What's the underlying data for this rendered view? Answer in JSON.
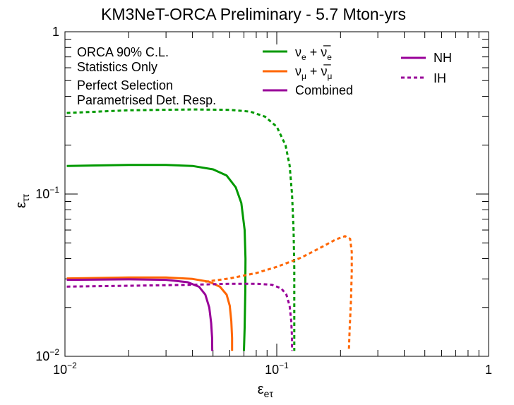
{
  "chart_data": {
    "type": "line",
    "title": "KM3NeT-ORCA Preliminary - 5.7 Mton-yrs",
    "xlabel": "εeτ",
    "ylabel": "εττ",
    "xscale": "log",
    "yscale": "log",
    "xlim": [
      0.01,
      1
    ],
    "ylim": [
      0.01,
      1
    ],
    "x_ticks": [
      {
        "value": 0.01,
        "label": "10",
        "exp": "−2"
      },
      {
        "value": 0.1,
        "label": "10",
        "exp": "−1"
      },
      {
        "value": 1,
        "label": "1",
        "exp": ""
      }
    ],
    "y_ticks": [
      {
        "value": 0.01,
        "label": "10",
        "exp": "−2"
      },
      {
        "value": 0.1,
        "label": "10",
        "exp": "−1"
      },
      {
        "value": 1,
        "label": "1",
        "exp": ""
      }
    ],
    "annotations": [
      "ORCA 90% C.L.",
      "Statistics Only",
      "Perfect Selection",
      "Parametrised Det. Resp."
    ],
    "legend": {
      "placement": "top",
      "color_entries": [
        {
          "key": "nue",
          "text": "νe + ν̅e",
          "color": "#009900"
        },
        {
          "key": "numu",
          "text": "νμ + ν̅μ",
          "color": "#ff6600"
        },
        {
          "key": "combined",
          "label": "Combined",
          "color": "#990099"
        }
      ],
      "style_entries": [
        {
          "label": "NH",
          "dash": "solid",
          "color": "#990099"
        },
        {
          "label": "IH",
          "dash": "dotted",
          "color": "#990099"
        }
      ]
    },
    "series": [
      {
        "name": "nue NH",
        "color": "#009900",
        "dash": "solid",
        "points": [
          [
            0.0102,
            0.149
          ],
          [
            0.02,
            0.151
          ],
          [
            0.03,
            0.151
          ],
          [
            0.04,
            0.149
          ],
          [
            0.05,
            0.142
          ],
          [
            0.058,
            0.13
          ],
          [
            0.064,
            0.11
          ],
          [
            0.068,
            0.088
          ],
          [
            0.0705,
            0.06
          ],
          [
            0.0712,
            0.04
          ],
          [
            0.071,
            0.025
          ],
          [
            0.0705,
            0.015
          ],
          [
            0.07,
            0.0108
          ]
        ]
      },
      {
        "name": "nue IH",
        "color": "#009900",
        "dash": "dotted",
        "points": [
          [
            0.0102,
            0.316
          ],
          [
            0.02,
            0.328
          ],
          [
            0.04,
            0.332
          ],
          [
            0.06,
            0.33
          ],
          [
            0.075,
            0.322
          ],
          [
            0.088,
            0.3
          ],
          [
            0.1,
            0.26
          ],
          [
            0.11,
            0.2
          ],
          [
            0.115,
            0.15
          ],
          [
            0.118,
            0.1
          ],
          [
            0.12,
            0.06
          ],
          [
            0.121,
            0.035
          ],
          [
            0.121,
            0.02
          ],
          [
            0.121,
            0.0108
          ]
        ]
      },
      {
        "name": "numu NH",
        "color": "#ff6600",
        "dash": "solid",
        "points": [
          [
            0.0102,
            0.0302
          ],
          [
            0.02,
            0.0306
          ],
          [
            0.03,
            0.0306
          ],
          [
            0.04,
            0.03
          ],
          [
            0.048,
            0.0288
          ],
          [
            0.054,
            0.0268
          ],
          [
            0.058,
            0.024
          ],
          [
            0.06,
            0.0205
          ],
          [
            0.061,
            0.0165
          ],
          [
            0.0615,
            0.013
          ],
          [
            0.0615,
            0.0108
          ]
        ]
      },
      {
        "name": "numu IH",
        "color": "#ff6600",
        "dash": "dotted",
        "points": [
          [
            0.046,
            0.0288
          ],
          [
            0.06,
            0.0302
          ],
          [
            0.08,
            0.0326
          ],
          [
            0.1,
            0.0356
          ],
          [
            0.13,
            0.0405
          ],
          [
            0.16,
            0.0465
          ],
          [
            0.19,
            0.0525
          ],
          [
            0.21,
            0.055
          ],
          [
            0.222,
            0.053
          ],
          [
            0.226,
            0.044
          ],
          [
            0.226,
            0.033
          ],
          [
            0.224,
            0.022
          ],
          [
            0.221,
            0.015
          ],
          [
            0.219,
            0.0108
          ]
        ]
      },
      {
        "name": "combined NH",
        "color": "#990099",
        "dash": "solid",
        "points": [
          [
            0.0102,
            0.0296
          ],
          [
            0.02,
            0.0298
          ],
          [
            0.03,
            0.0296
          ],
          [
            0.038,
            0.0286
          ],
          [
            0.043,
            0.0268
          ],
          [
            0.046,
            0.024
          ],
          [
            0.048,
            0.02
          ],
          [
            0.049,
            0.016
          ],
          [
            0.0495,
            0.013
          ],
          [
            0.0496,
            0.0108
          ]
        ]
      },
      {
        "name": "combined IH",
        "color": "#990099",
        "dash": "dotted",
        "points": [
          [
            0.0102,
            0.0269
          ],
          [
            0.02,
            0.0272
          ],
          [
            0.04,
            0.0276
          ],
          [
            0.06,
            0.028
          ],
          [
            0.08,
            0.028
          ],
          [
            0.095,
            0.0276
          ],
          [
            0.105,
            0.0262
          ],
          [
            0.111,
            0.024
          ],
          [
            0.115,
            0.0205
          ],
          [
            0.117,
            0.0165
          ],
          [
            0.118,
            0.013
          ],
          [
            0.118,
            0.0108
          ]
        ]
      }
    ]
  }
}
